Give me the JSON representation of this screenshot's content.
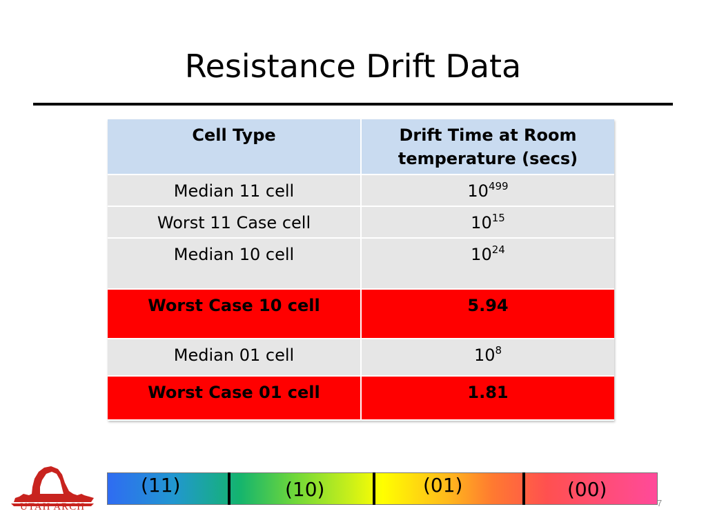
{
  "slide": {
    "title": "Resistance Drift Data",
    "page_number": "7"
  },
  "table": {
    "headers": [
      "Cell Type",
      "Drift Time at Room temperature (secs)"
    ],
    "rows": [
      {
        "cell_type": "Median 11 cell",
        "base": "10",
        "exponent": "499",
        "highlight": false
      },
      {
        "cell_type": "Worst 11 Case cell",
        "base": "10",
        "exponent": "15",
        "highlight": false
      },
      {
        "cell_type": "Median 10 cell",
        "base": "10",
        "exponent": "24",
        "highlight": false
      },
      {
        "cell_type": "Worst Case 10 cell",
        "value": "5.94",
        "highlight": true
      },
      {
        "cell_type": "Median 01 cell",
        "base": "10",
        "exponent": "8",
        "highlight": false
      },
      {
        "cell_type": "Worst Case 01 cell",
        "value": "1.81",
        "highlight": true
      }
    ]
  },
  "colors": {
    "header_bg": "#c9dbf0",
    "row_bg": "#e6e6e6",
    "highlight_bg": "#ff0000",
    "logo": "#c8231e"
  },
  "state_bar": {
    "segments": [
      "(11)",
      "(10)",
      "(01)",
      "(00)"
    ]
  },
  "logo": {
    "text": "UTAH ARCH",
    "icon": "delicate-arch-icon"
  }
}
